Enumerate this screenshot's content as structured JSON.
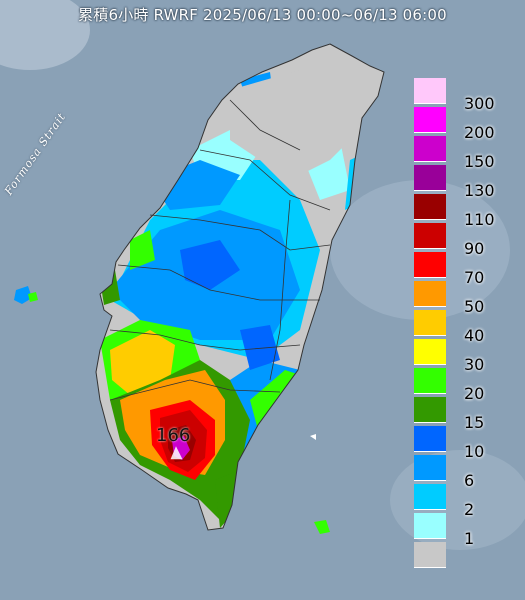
{
  "title": "累積6小時 RWRF 2025/06/13 00:00~06/13 06:00",
  "sea_label": "Formosa Strait",
  "max_marker": {
    "label": "166",
    "icon": "triangle-marker-icon"
  },
  "legend": [
    {
      "label": "300",
      "color": "#ffc8fa"
    },
    {
      "label": "200",
      "color": "#ff00ff"
    },
    {
      "label": "150",
      "color": "#cc00cc"
    },
    {
      "label": "130",
      "color": "#990099"
    },
    {
      "label": "110",
      "color": "#990000"
    },
    {
      "label": "90",
      "color": "#cc0000"
    },
    {
      "label": "70",
      "color": "#ff0000"
    },
    {
      "label": "50",
      "color": "#ff9900"
    },
    {
      "label": "40",
      "color": "#ffcc00"
    },
    {
      "label": "30",
      "color": "#ffff00"
    },
    {
      "label": "20",
      "color": "#33ff00"
    },
    {
      "label": "15",
      "color": "#339900"
    },
    {
      "label": "10",
      "color": "#0066ff"
    },
    {
      "label": "6",
      "color": "#0099ff"
    },
    {
      "label": "2",
      "color": "#00ccff"
    },
    {
      "label": "1",
      "color": "#99ffff"
    },
    {
      "label": "",
      "color": "#c8c8c8"
    }
  ],
  "colors": {
    "sea": "#8aa1b6",
    "land_no_rain": "#c8c8c8",
    "boundary": "#333333"
  }
}
